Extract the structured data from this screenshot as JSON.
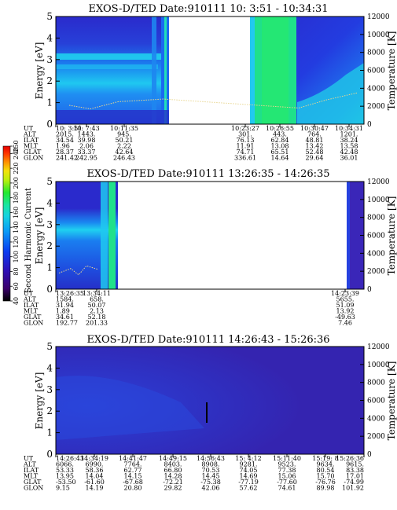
{
  "colors": {
    "bg_deep_blue": "#2a2acc",
    "mid_blue": "#1f5ff0",
    "cyan": "#22d7f0",
    "green": "#1fe08a",
    "colorbar": [
      "#000000",
      "#3a006a",
      "#2d10b8",
      "#0b3cf0",
      "#0a9bf6",
      "#17d3e0",
      "#19e6a0",
      "#21e82f",
      "#b9ef0e",
      "#f3e20a",
      "#ff8c00",
      "#ff3a00",
      "#e60000"
    ]
  },
  "colorbar": {
    "title": "Second Harmonic Current",
    "tick_labels": [
      "40",
      "60",
      "80",
      "100",
      "120",
      "140",
      "160",
      "180",
      "200",
      "220",
      "240",
      "250"
    ]
  },
  "chart_data": [
    {
      "type": "heatmap",
      "title": "EXOS-D/TED  Date:910111  10: 3:51 - 10:34:31",
      "ylabel": "Energy [eV]",
      "y2label": "Temperature [K]",
      "ylim": [
        0,
        5
      ],
      "y2lim": [
        0,
        12000
      ],
      "yticks": [
        "0",
        "1",
        "2",
        "3",
        "4",
        "5"
      ],
      "y2ticks": [
        "0",
        "2000",
        "4000",
        "6000",
        "8000",
        "10000",
        "12000"
      ],
      "row_labels": [
        "UT",
        "ALT",
        "ILAT",
        "MLT",
        "GLAT",
        "GLON"
      ],
      "columns": [
        [
          "10: 3:51",
          "2015.",
          "34.54",
          "1.96",
          "28.37",
          "241.42"
        ],
        [
          "10: 7:43",
          "1443.",
          "39.98",
          "2.06",
          "33.37",
          "242.95"
        ],
        [
          "10:11:35",
          "945.",
          "50.21",
          "2.22",
          "42.64",
          "246.43"
        ],
        [
          "10:23:27",
          "301.",
          "76.13",
          "11.91",
          "74.71",
          "336.61"
        ],
        [
          "10:26:55",
          "443.",
          "62.84",
          "13.08",
          "65.51",
          "14.64"
        ],
        [
          "10:30:47",
          "764.",
          "48.81",
          "13.42",
          "52.48",
          "29.64"
        ],
        [
          "10:34:31",
          "1201.",
          "38.24",
          "13.58",
          "42.48",
          "36.01"
        ]
      ],
      "data_gap": "10:13:00 - 10:22:30",
      "temperature_trace": {
        "x": [
          "10: 3:51",
          "10: 7:43",
          "10:11:35",
          "10:12:40",
          "10:26:55",
          "10:30:47",
          "10:34:31"
        ],
        "y": [
          2100,
          1700,
          2500,
          2800,
          1800,
          2700,
          3500
        ]
      }
    },
    {
      "type": "heatmap",
      "title": "EXOS-D/TED  Date:910111  13:26:35 - 14:26:35",
      "ylabel": "Energy [eV]",
      "y2label": "Temperature [K]",
      "ylim": [
        0,
        5
      ],
      "y2lim": [
        0,
        12000
      ],
      "yticks": [
        "0",
        "1",
        "2",
        "3",
        "4",
        "5"
      ],
      "y2ticks": [
        "0",
        "2000",
        "4000",
        "6000",
        "8000",
        "10000",
        "12000"
      ],
      "row_labels": [
        "UT",
        "ALT",
        "ILAT",
        "MLT",
        "GLAT",
        "GLON"
      ],
      "columns": [
        [
          "13:26:35",
          "1584.",
          "31.94",
          "1.89",
          "34.61",
          "192.77"
        ],
        [
          "13:34:11",
          "658.",
          "50.07",
          "2.13",
          "52.18",
          "201.33"
        ],
        [
          "14:23:39",
          "5655.",
          "51.09",
          "13.92",
          "-49.63",
          "7.46"
        ]
      ],
      "data_gap": "13:35:00 - 14:23:00",
      "temperature_trace": {
        "x": [
          "13:26:35",
          "13:28:30",
          "13:30:30",
          "13:31:30",
          "13:32:30"
        ],
        "y": [
          1800,
          2300,
          1600,
          2600,
          2200
        ]
      }
    },
    {
      "type": "heatmap",
      "title": "EXOS-D/TED  Date:910111  14:26:43 - 15:26:36",
      "ylabel": "Energy [eV]",
      "y2label": "Temperature [K]",
      "ylim": [
        0,
        5
      ],
      "y2lim": [
        0,
        12000
      ],
      "yticks": [
        "0",
        "1",
        "2",
        "3",
        "4",
        "5"
      ],
      "y2ticks": [
        "0",
        "2000",
        "4000",
        "6000",
        "8000",
        "10000",
        "12000"
      ],
      "row_labels": [
        "UT",
        "ALT",
        "ILAT",
        "MLT",
        "GLAT",
        "GLON"
      ],
      "columns": [
        [
          "14:26:43",
          "6066.",
          "53.33",
          "13.95",
          "-53.50",
          "9.15"
        ],
        [
          "14:34:19",
          "6990.",
          "58.36",
          "14.04",
          "-61.60",
          "14.19"
        ],
        [
          "14:41:47",
          "7764.",
          "62.77",
          "14.15",
          "-67.68",
          "20.80"
        ],
        [
          "14:49:15",
          "8403.",
          "66.80",
          "14.28",
          "-72.21",
          "29.82"
        ],
        [
          "14:56:43",
          "8908.",
          "70.53",
          "14.45",
          "-75.38",
          "42.06"
        ],
        [
          "15: 4:12",
          "9281.",
          "74.05",
          "14.69",
          "-77.19",
          "57.62"
        ],
        [
          "15:11:40",
          "9523.",
          "77.38",
          "15.06",
          "-77.60",
          "74.61"
        ],
        [
          "15:19: 8",
          "9634.",
          "80.54",
          "15.70",
          "-76.76",
          "89.98"
        ],
        [
          "15:26:36",
          "9615.",
          "83.38",
          "17.01",
          "-74.99",
          "101.92"
        ]
      ]
    }
  ]
}
